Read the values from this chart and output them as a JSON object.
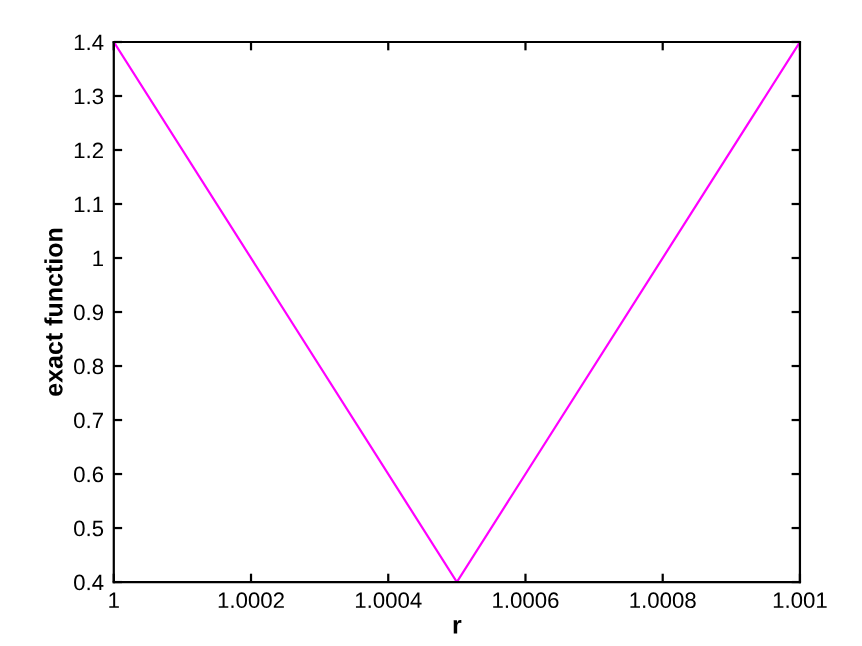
{
  "chart_data": {
    "type": "line",
    "xlabel": "r",
    "ylabel": "exact function",
    "x": [
      1,
      1.0005,
      1.001
    ],
    "series": [
      {
        "color": "#ff00ff",
        "values": [
          1.4,
          0.4,
          1.4
        ]
      }
    ],
    "xlim": [
      1,
      1.001
    ],
    "xticks": [
      1,
      1.0002,
      1.0004,
      1.0006,
      1.0008,
      1.001
    ],
    "ylim": [
      0.4,
      1.4
    ],
    "yticks": [
      0.4,
      0.5,
      0.6,
      0.7,
      0.8,
      0.9,
      1,
      1.1,
      1.2,
      1.3,
      1.4
    ],
    "grid": false,
    "legend": false
  }
}
